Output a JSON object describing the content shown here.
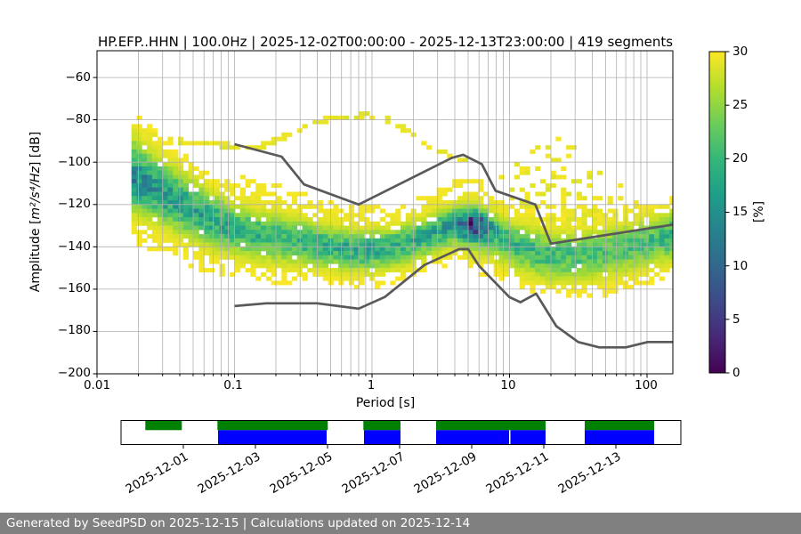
{
  "title": "HP.EFP..HHN | 100.0Hz | 2025-12-02T00:00:00 - 2025-12-13T23:00:00 | 419 segments",
  "axes": {
    "xlabel": "Period [s]",
    "ylabel_prefix": "Amplitude [",
    "ylabel_math": "m²/s⁴/Hz",
    "ylabel_suffix": "] [dB]",
    "xtick_labels": [
      "0.01",
      "0.1",
      "1",
      "10",
      "100"
    ],
    "ytick_labels": [
      "−60",
      "−80",
      "−100",
      "−120",
      "−140",
      "−160",
      "−180",
      "−200"
    ]
  },
  "colorbar": {
    "label": "[%]",
    "tick_labels": [
      "0",
      "5",
      "10",
      "15",
      "20",
      "25",
      "30"
    ],
    "min": 0,
    "max": 30
  },
  "chart_data": {
    "type": "heatmap",
    "title": "HP.EFP..HHN | 100.0Hz | 2025-12-02T00:00:00 - 2025-12-13T23:00:00 | 419 segments",
    "xlabel": "Period [s]",
    "ylabel": "Amplitude [m²/s⁴/Hz] [dB]",
    "xscale": "log",
    "xlim": [
      0.01,
      154
    ],
    "ylim": [
      -200,
      -47.35
    ],
    "grid": true,
    "xticks": [
      0.01,
      0.1,
      1,
      10,
      100
    ],
    "yticks": [
      -60,
      -80,
      -100,
      -120,
      -140,
      -160,
      -180,
      -200
    ],
    "colorbar_label": "[%]",
    "colorbar_range": [
      0,
      30
    ],
    "colorbar_ticks": [
      0,
      5,
      10,
      15,
      20,
      25,
      30
    ],
    "colormap": "viridis_r",
    "viridis_stops": [
      "#440154",
      "#482878",
      "#3e4a89",
      "#31688e",
      "#26828e",
      "#1f9e89",
      "#35b779",
      "#6dcd59",
      "#b4de2c",
      "#fde725"
    ],
    "grid_color": "#b0b0b0",
    "model_line_color": "#595959",
    "noise_models": {
      "nhnm": [
        [
          0.1,
          -91.5
        ],
        [
          0.22,
          -97.4
        ],
        [
          0.32,
          -110.5
        ],
        [
          0.8,
          -120.0
        ],
        [
          3.8,
          -98.0
        ],
        [
          4.6,
          -96.5
        ],
        [
          6.3,
          -101.0
        ],
        [
          7.9,
          -113.5
        ],
        [
          15.4,
          -120.0
        ],
        [
          20.0,
          -138.5
        ],
        [
          154.0,
          -129.5
        ]
      ],
      "nlnm": [
        [
          0.1,
          -168.0
        ],
        [
          0.17,
          -166.7
        ],
        [
          0.4,
          -166.7
        ],
        [
          0.8,
          -169.2
        ],
        [
          1.24,
          -163.7
        ],
        [
          2.4,
          -148.6
        ],
        [
          4.3,
          -141.1
        ],
        [
          5.0,
          -141.1
        ],
        [
          6.0,
          -149.0
        ],
        [
          10.0,
          -163.8
        ],
        [
          12.0,
          -166.2
        ],
        [
          15.6,
          -162.1
        ],
        [
          21.9,
          -177.5
        ],
        [
          31.6,
          -185.0
        ],
        [
          45.0,
          -187.5
        ],
        [
          70.0,
          -187.5
        ],
        [
          101.0,
          -185.0
        ],
        [
          154.0,
          -185.0
        ]
      ]
    },
    "ppsd_distribution": {
      "comment": "mode ridge of PSD histogram vs period; dB values; percent = peak probability",
      "periods": [
        0.018,
        0.028,
        0.045,
        0.07,
        0.1,
        0.15,
        0.25,
        0.4,
        0.7,
        1.0,
        1.6,
        2.6,
        4.0,
        5.5,
        7.5,
        10,
        14,
        20,
        30,
        50,
        80,
        120,
        154
      ],
      "mode_db": [
        -107,
        -114,
        -121,
        -127,
        -131,
        -134,
        -136,
        -139,
        -141,
        -141,
        -139,
        -134,
        -129,
        -128,
        -132,
        -137,
        -141,
        -144,
        -144,
        -142,
        -139,
        -136,
        -134
      ],
      "dense_up": [
        10,
        9,
        8,
        7,
        6,
        6,
        6,
        6,
        5,
        5,
        5,
        5,
        5,
        4,
        5,
        5,
        6,
        6,
        6,
        6,
        6,
        6,
        6
      ],
      "dense_down": [
        9,
        8,
        8,
        8,
        7,
        7,
        7,
        6,
        6,
        6,
        6,
        6,
        6,
        7,
        7,
        7,
        7,
        7,
        7,
        7,
        7,
        7,
        7
      ],
      "env_up": [
        22,
        21,
        20,
        22,
        25,
        26,
        24,
        22,
        21,
        20,
        19,
        20,
        21,
        22,
        18,
        17,
        16,
        14,
        13,
        14,
        15,
        16,
        15
      ],
      "env_down": [
        31,
        30,
        28,
        26,
        24,
        22,
        20,
        17,
        15,
        14,
        13,
        15,
        17,
        22,
        19,
        17,
        15,
        15,
        15,
        15,
        15,
        16,
        17
      ],
      "peak_percent": [
        16,
        14,
        13,
        12,
        12,
        11,
        10,
        11,
        12,
        12,
        11,
        12,
        14,
        26,
        13,
        11,
        10,
        10,
        9,
        9,
        9,
        10,
        11
      ]
    },
    "event_ridge": [
      [
        0.02,
        -85
      ],
      [
        0.04,
        -90
      ],
      [
        0.08,
        -92
      ],
      [
        0.15,
        -93
      ],
      [
        0.25,
        -87
      ],
      [
        0.4,
        -80.5
      ],
      [
        0.6,
        -78.5
      ],
      [
        0.9,
        -78
      ],
      [
        1.3,
        -80
      ],
      [
        1.8,
        -85
      ],
      [
        2.6,
        -92.5
      ],
      [
        3.5,
        -96.5
      ],
      [
        4.8,
        -99
      ]
    ],
    "long_period_event_envelope": [
      [
        7,
        -112
      ],
      [
        9,
        -104
      ],
      [
        12,
        -95
      ],
      [
        16,
        -90
      ],
      [
        22,
        -87.5
      ],
      [
        30,
        -90
      ],
      [
        40,
        -97
      ],
      [
        55,
        -104
      ],
      [
        75,
        -110
      ],
      [
        100,
        -115
      ],
      [
        135,
        -118
      ]
    ]
  },
  "availability": {
    "green_color": "#008000",
    "blue_color": "#0000ff",
    "tick_labels": [
      "2025-12-01",
      "2025-12-03",
      "2025-12-05",
      "2025-12-07",
      "2025-12-09",
      "2025-12-11",
      "2025-12-13"
    ],
    "tick_pcts": [
      11.13,
      24.01,
      36.88,
      49.76,
      62.64,
      75.52,
      88.39
    ],
    "green_segments_pct": [
      [
        4.34,
        6.52
      ],
      [
        17.22,
        19.71
      ],
      [
        43.29,
        6.63
      ],
      [
        56.28,
        19.55
      ],
      [
        82.83,
        12.4
      ]
    ],
    "blue_segments_pct": [
      [
        17.33,
        19.4
      ],
      [
        43.4,
        6.52
      ],
      [
        56.28,
        13.04
      ],
      [
        69.55,
        6.28
      ],
      [
        82.83,
        12.4
      ]
    ]
  },
  "footer": {
    "text": "Generated by SeedPSD on 2025-12-15 | Calculations updated on 2025-12-14",
    "bg": "#808080",
    "fg": "#ffffff"
  }
}
